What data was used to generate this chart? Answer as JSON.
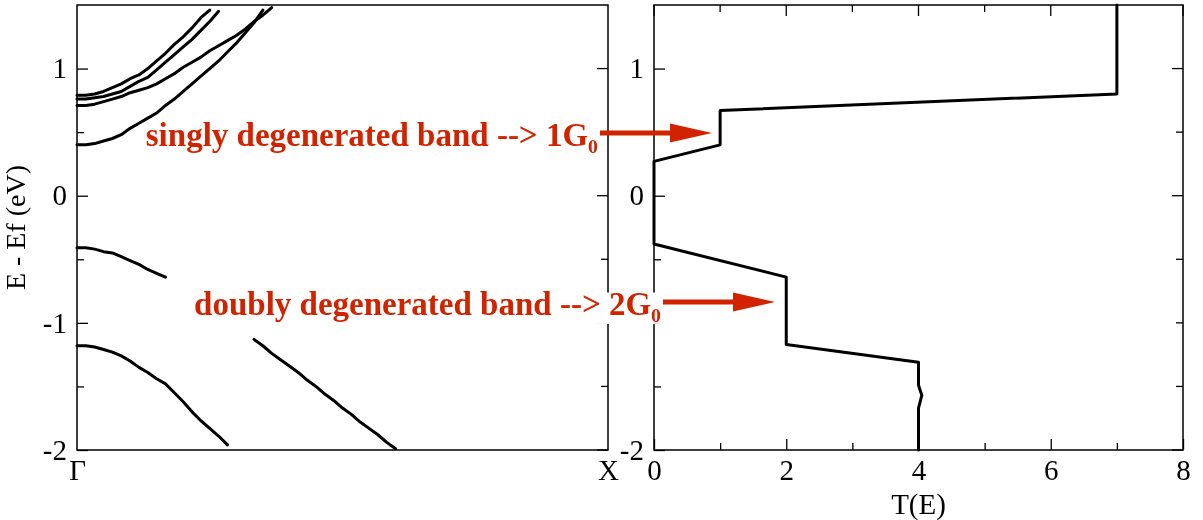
{
  "chart_data": [
    {
      "type": "line",
      "ylabel": "E - Ef (eV)",
      "categories": [
        "Γ",
        null,
        null,
        null,
        null,
        null,
        null,
        null,
        null,
        null,
        null,
        null,
        null,
        null,
        null,
        null,
        null,
        null,
        null,
        null,
        null,
        null,
        null,
        null,
        null,
        null,
        null,
        null,
        null,
        null,
        null,
        null,
        null,
        null,
        null,
        null,
        null,
        null,
        null,
        null,
        null,
        null,
        null,
        null,
        null,
        null,
        null,
        null,
        null,
        null,
        null,
        null,
        null,
        null,
        null,
        null,
        null,
        null,
        null,
        null,
        "X"
      ],
      "ylim": [
        -2,
        1.5
      ],
      "yticks": [
        -2,
        {
          "value": -1.5,
          "label": null
        },
        -1,
        {
          "value": -0.5,
          "label": null
        },
        0,
        {
          "value": 0.5,
          "label": null
        },
        1
      ],
      "series": [
        {
          "color": "#000000",
          "values": [
            0.4,
            0.4,
            0.41,
            0.43,
            0.45,
            0.48,
            0.53,
            0.57,
            0.61,
            0.65,
            0.71,
            0.76,
            0.82,
            0.88,
            0.94,
            1.0,
            1.06,
            1.13,
            1.2,
            1.28,
            1.36,
            1.46,
            null,
            null,
            null,
            null,
            null,
            null,
            null,
            null,
            null,
            null,
            null,
            null,
            null,
            null,
            null,
            null,
            null,
            null,
            null,
            null,
            null,
            null,
            null,
            null,
            null,
            null,
            null,
            null,
            null,
            null,
            null,
            null,
            null,
            null,
            null,
            null,
            null,
            null,
            null
          ]
        },
        {
          "color": "#000000",
          "values": [
            0.71,
            0.71,
            0.72,
            0.74,
            0.76,
            0.78,
            0.81,
            0.83,
            0.85,
            0.88,
            0.92,
            0.96,
            1.01,
            1.05,
            1.09,
            1.14,
            1.18,
            1.22,
            1.26,
            1.31,
            1.37,
            1.42,
            1.48,
            null,
            null,
            null,
            null,
            null,
            null,
            null,
            null,
            null,
            null,
            null,
            null,
            null,
            null,
            null,
            null,
            null,
            null,
            null,
            null,
            null,
            null,
            null,
            null,
            null,
            null,
            null,
            null,
            null,
            null,
            null,
            null,
            null,
            null,
            null,
            null,
            null,
            null
          ]
        },
        {
          "color": "#000000",
          "values": [
            0.76,
            0.76,
            0.77,
            0.78,
            0.8,
            0.82,
            0.86,
            0.9,
            0.93,
            0.99,
            1.05,
            1.11,
            1.17,
            1.23,
            1.3,
            1.37,
            1.45,
            null,
            null,
            null,
            null,
            null,
            null,
            null,
            null,
            null,
            null,
            null,
            null,
            null,
            null,
            null,
            null,
            null,
            null,
            null,
            null,
            null,
            null,
            null,
            null,
            null,
            null,
            null,
            null,
            null,
            null,
            null,
            null,
            null,
            null,
            null,
            null,
            null,
            null,
            null,
            null,
            null,
            null,
            null,
            null
          ]
        },
        {
          "color": "#000000",
          "values": [
            0.79,
            0.79,
            0.8,
            0.82,
            0.85,
            0.88,
            0.92,
            0.95,
            1.0,
            1.06,
            1.12,
            1.19,
            1.25,
            1.32,
            1.4,
            1.46,
            null,
            null,
            null,
            null,
            null,
            null,
            null,
            null,
            null,
            null,
            null,
            null,
            null,
            null,
            null,
            null,
            null,
            null,
            null,
            null,
            null,
            null,
            null,
            null,
            null,
            null,
            null,
            null,
            null,
            null,
            null,
            null,
            null,
            null,
            null,
            null,
            null,
            null,
            null,
            null,
            null,
            null,
            null,
            null,
            null
          ]
        },
        {
          "color": "#000000",
          "values": [
            -0.41,
            -0.41,
            -0.42,
            -0.44,
            -0.45,
            -0.48,
            -0.51,
            -0.54,
            -0.58,
            -0.61,
            -0.64,
            null,
            null,
            null,
            null,
            null,
            null,
            null,
            null,
            null,
            -1.13,
            -1.18,
            -1.24,
            -1.29,
            -1.34,
            -1.39,
            -1.45,
            -1.5,
            -1.56,
            -1.61,
            -1.67,
            -1.72,
            -1.78,
            -1.83,
            -1.88,
            -1.94,
            -1.99,
            null,
            null,
            null,
            null,
            null,
            null,
            null,
            null,
            null,
            null,
            null,
            null,
            null,
            null,
            null,
            null,
            null,
            null,
            null,
            null,
            null,
            null,
            null,
            null
          ]
        },
        {
          "color": "#000000",
          "values": [
            -1.18,
            -1.18,
            -1.19,
            -1.21,
            -1.23,
            -1.26,
            -1.3,
            -1.35,
            -1.39,
            -1.44,
            -1.48,
            -1.55,
            -1.62,
            -1.7,
            -1.77,
            -1.83,
            -1.89,
            -1.96,
            null,
            null,
            null,
            null,
            null,
            null,
            null,
            null,
            null,
            null,
            null,
            null,
            null,
            null,
            null,
            null,
            null,
            null,
            null,
            null,
            null,
            null,
            null,
            null,
            null,
            null,
            null,
            null,
            null,
            null,
            null,
            null,
            null,
            null,
            null,
            null,
            null,
            null,
            null,
            null,
            null,
            null,
            null
          ]
        }
      ]
    },
    {
      "type": "line",
      "xlabel": "T(E)",
      "xlim": [
        0,
        8
      ],
      "xticks": [
        0,
        {
          "value": 1,
          "label": null
        },
        2,
        {
          "value": 3,
          "label": null
        },
        4,
        {
          "value": 5,
          "label": null
        },
        6,
        {
          "value": 7,
          "label": null
        },
        8
      ],
      "ylim": [
        -2,
        1.5
      ],
      "yticks": [
        -2,
        {
          "value": -1.5,
          "label": null
        },
        {
          "value": -1,
          "label": null
        },
        {
          "value": -0.5,
          "label": null
        },
        0,
        {
          "value": 0.5,
          "label": null
        },
        1
      ],
      "series": [
        {
          "color": "#000000",
          "x": [
            7,
            7,
            1,
            1,
            0,
            0,
            2,
            2,
            4,
            4,
            4.05,
            4,
            4
          ],
          "values": [
            1.5,
            0.8,
            0.67,
            0.4,
            0.27,
            -0.38,
            -0.64,
            -1.17,
            -1.31,
            -1.49,
            -1.57,
            -1.67,
            -2
          ]
        }
      ],
      "annotations": [
        "singly degenerated band --> 1G₀",
        "doubly degenerated band --> 2G₀"
      ]
    }
  ]
}
